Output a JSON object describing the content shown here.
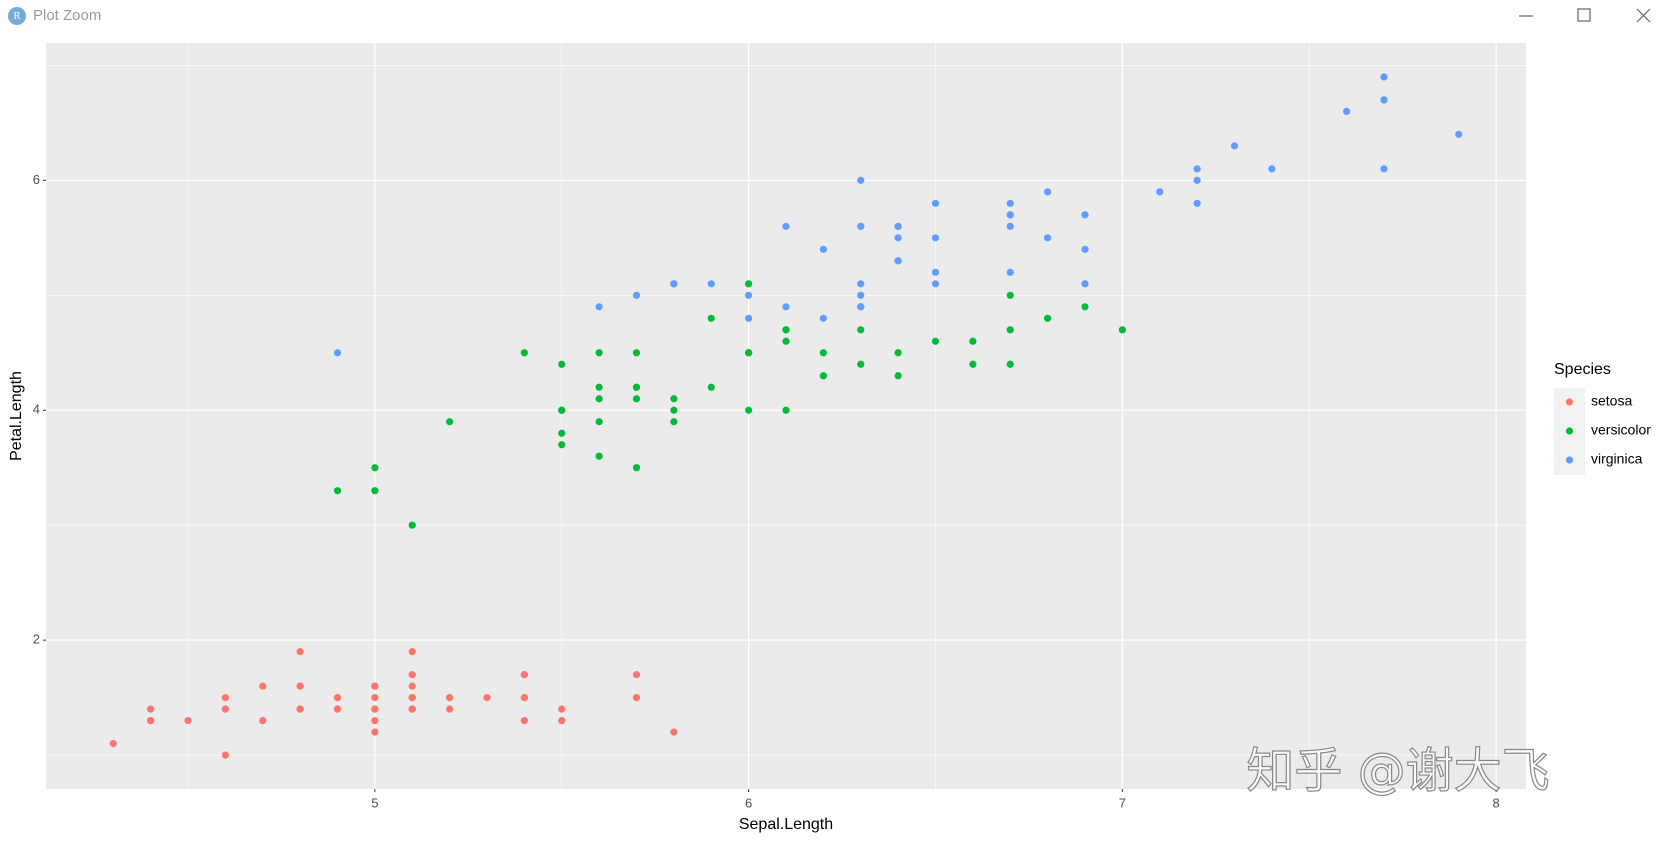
{
  "window": {
    "title": "Plot Zoom",
    "icon": "R"
  },
  "chart_data": {
    "type": "scatter",
    "xlabel": "Sepal.Length",
    "ylabel": "Petal.Length",
    "xlim": [
      4.12,
      8.08
    ],
    "ylim": [
      0.705,
      7.195
    ],
    "xticks": [
      5,
      6,
      7,
      8
    ],
    "yticks": [
      2,
      4,
      6
    ],
    "grid": true,
    "legend_title": "Species",
    "legend_position": "right",
    "series": [
      {
        "name": "setosa",
        "color": "#F8766D",
        "x": [
          5.1,
          4.9,
          4.7,
          4.6,
          5.0,
          5.4,
          4.6,
          5.0,
          4.4,
          4.9,
          5.4,
          4.8,
          4.8,
          4.3,
          5.8,
          5.7,
          5.4,
          5.1,
          5.7,
          5.1,
          5.4,
          5.1,
          4.6,
          5.1,
          4.8,
          5.0,
          5.0,
          5.2,
          5.2,
          4.7,
          4.8,
          5.4,
          5.2,
          5.5,
          4.9,
          5.0,
          5.5,
          4.9,
          4.4,
          5.1,
          5.0,
          4.5,
          4.4,
          5.0,
          5.1,
          4.8,
          5.1,
          4.6,
          5.3,
          5.0
        ],
        "values": [
          1.4,
          1.4,
          1.3,
          1.5,
          1.4,
          1.7,
          1.4,
          1.5,
          1.4,
          1.5,
          1.5,
          1.6,
          1.4,
          1.1,
          1.2,
          1.5,
          1.3,
          1.4,
          1.7,
          1.5,
          1.7,
          1.5,
          1.0,
          1.7,
          1.9,
          1.6,
          1.6,
          1.5,
          1.4,
          1.6,
          1.6,
          1.5,
          1.5,
          1.4,
          1.5,
          1.2,
          1.3,
          1.4,
          1.3,
          1.5,
          1.3,
          1.3,
          1.3,
          1.6,
          1.9,
          1.4,
          1.6,
          1.4,
          1.5,
          1.4
        ]
      },
      {
        "name": "versicolor",
        "color": "#00BA38",
        "x": [
          7.0,
          6.4,
          6.9,
          5.5,
          6.5,
          5.7,
          6.3,
          4.9,
          6.6,
          5.2,
          5.0,
          5.9,
          6.0,
          6.1,
          5.6,
          6.7,
          5.6,
          5.8,
          6.2,
          5.6,
          5.9,
          6.1,
          6.3,
          6.1,
          6.4,
          6.6,
          6.8,
          6.7,
          6.0,
          5.7,
          5.5,
          5.5,
          5.8,
          6.0,
          5.4,
          6.0,
          6.7,
          6.3,
          5.6,
          5.5,
          5.5,
          6.1,
          5.8,
          5.0,
          5.6,
          5.7,
          5.7,
          6.2,
          5.1,
          5.7
        ],
        "values": [
          4.7,
          4.5,
          4.9,
          4.0,
          4.6,
          4.5,
          4.7,
          3.3,
          4.6,
          3.9,
          3.5,
          4.2,
          4.0,
          4.7,
          3.6,
          4.4,
          4.5,
          4.1,
          4.5,
          3.9,
          4.8,
          4.0,
          4.9,
          4.7,
          4.3,
          4.4,
          4.8,
          5.0,
          4.5,
          3.5,
          3.8,
          3.7,
          3.9,
          5.1,
          4.5,
          4.5,
          4.7,
          4.4,
          4.1,
          4.0,
          4.4,
          4.6,
          4.0,
          3.3,
          4.2,
          4.2,
          4.2,
          4.3,
          3.0,
          4.1
        ]
      },
      {
        "name": "virginica",
        "color": "#619CFF",
        "x": [
          6.3,
          5.8,
          7.1,
          6.3,
          6.5,
          7.6,
          4.9,
          7.3,
          6.7,
          7.2,
          6.5,
          6.4,
          6.8,
          5.7,
          5.8,
          6.4,
          6.5,
          7.7,
          7.7,
          6.0,
          6.9,
          5.6,
          7.7,
          6.3,
          6.7,
          7.2,
          6.2,
          6.1,
          6.4,
          7.2,
          7.4,
          7.9,
          6.4,
          6.3,
          6.1,
          7.7,
          6.3,
          6.4,
          6.0,
          6.9,
          6.7,
          6.9,
          5.8,
          6.8,
          6.7,
          6.7,
          6.3,
          6.5,
          6.2,
          5.9
        ],
        "values": [
          6.0,
          5.1,
          5.9,
          5.6,
          5.8,
          6.6,
          4.5,
          6.3,
          5.8,
          6.1,
          5.1,
          5.3,
          5.5,
          5.0,
          5.1,
          5.3,
          5.5,
          6.7,
          6.9,
          5.0,
          5.7,
          4.9,
          6.7,
          4.9,
          5.7,
          6.0,
          4.8,
          4.9,
          5.6,
          5.8,
          6.1,
          6.4,
          5.6,
          5.1,
          5.6,
          6.1,
          5.6,
          5.5,
          4.8,
          5.4,
          5.6,
          5.1,
          5.1,
          5.9,
          5.7,
          5.2,
          5.0,
          5.2,
          5.4,
          5.1
        ]
      }
    ]
  },
  "watermark": "知乎 @谢大飞"
}
